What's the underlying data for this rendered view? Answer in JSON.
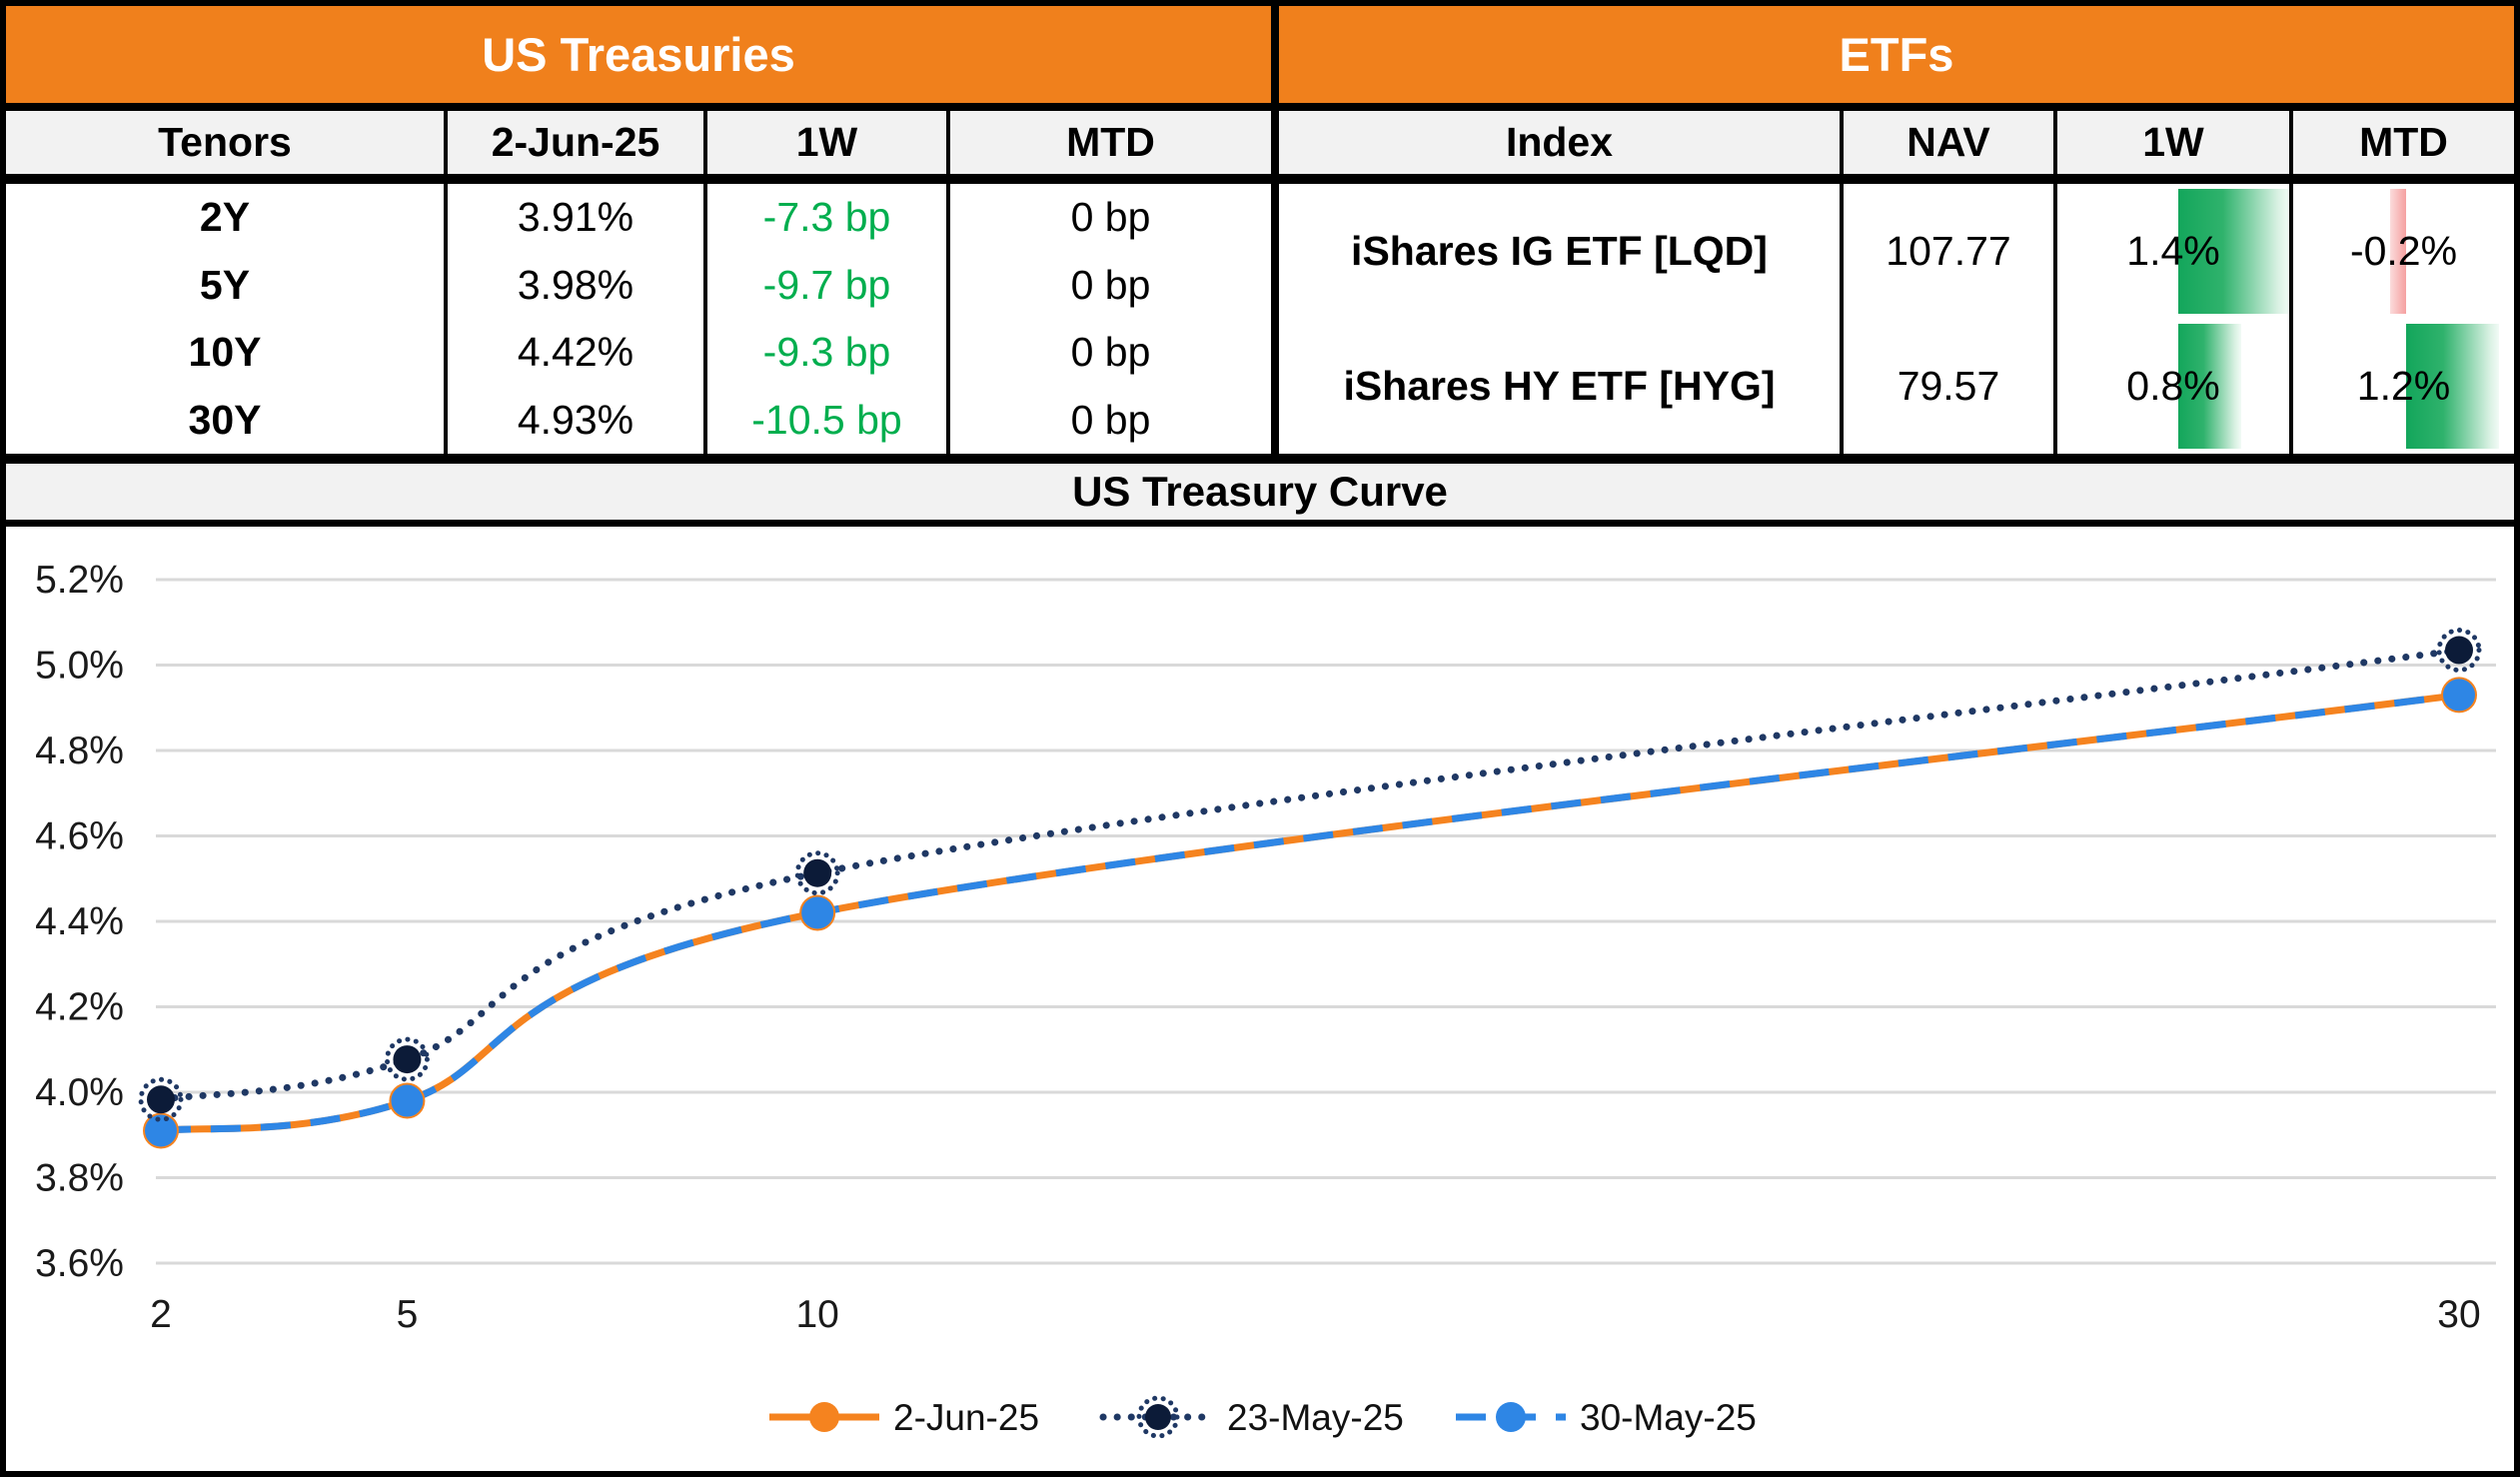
{
  "treasuries": {
    "title": "US Treasuries",
    "columns": [
      "Tenors",
      "2-Jun-25",
      "1W",
      "MTD"
    ],
    "rows": [
      {
        "tenor": "2Y",
        "yield": "3.91%",
        "w1": "-7.3 bp",
        "mtd": "0 bp"
      },
      {
        "tenor": "5Y",
        "yield": "3.98%",
        "w1": "-9.7 bp",
        "mtd": "0 bp"
      },
      {
        "tenor": "10Y",
        "yield": "4.42%",
        "w1": "-9.3 bp",
        "mtd": "0 bp"
      },
      {
        "tenor": "30Y",
        "yield": "4.93%",
        "w1": "-10.5 bp",
        "mtd": "0 bp"
      }
    ],
    "change_text_color": "#00AE4E"
  },
  "etfs": {
    "title": "ETFs",
    "columns": [
      "Index",
      "NAV",
      "1W",
      "MTD"
    ],
    "rows": [
      {
        "index": "iShares IG ETF [LQD]",
        "nav": "107.77",
        "w1_label": "1.4%",
        "w1": 1.4,
        "mtd_label": "-0.2%",
        "mtd": -0.2
      },
      {
        "index": "iShares HY ETF [HYG]",
        "nav": "79.57",
        "w1_label": "0.8%",
        "w1": 0.8,
        "mtd_label": "1.2%",
        "mtd": 1.2
      }
    ],
    "bar_colors": {
      "positive": "#13A65B",
      "negative": "#F5A0A0"
    }
  },
  "chart_data": {
    "type": "line",
    "title": "US Treasury Curve",
    "x": [
      2,
      5,
      10,
      30
    ],
    "x_ticks": [
      "2",
      "5",
      "10",
      "30"
    ],
    "y_ticks": [
      "5.2%",
      "5.0%",
      "4.8%",
      "4.6%",
      "4.4%",
      "4.2%",
      "4.0%",
      "3.8%",
      "3.6%"
    ],
    "ylim": [
      3.6,
      5.2
    ],
    "xlabel": "",
    "ylabel": "",
    "grid": true,
    "grid_color": "#D9D9D9",
    "legend_position": "bottom",
    "series": [
      {
        "name": "2-Jun-25",
        "values": [
          3.91,
          3.98,
          4.42,
          4.93
        ],
        "color": "#F5831F",
        "line": "solid",
        "marker": "circle"
      },
      {
        "name": "23-May-25",
        "values": [
          3.983,
          4.077,
          4.513,
          5.035
        ],
        "color": "#1F3864",
        "line": "dotted",
        "marker": "ringed-circle",
        "marker_fill": "#0C1B38"
      },
      {
        "name": "30-May-25",
        "values": [
          3.91,
          3.98,
          4.42,
          4.93
        ],
        "color": "#2E86E5",
        "line": "dashed",
        "marker": "circle"
      }
    ]
  },
  "colors": {
    "header_orange": "#F0801C",
    "band_gray": "#F2F2F2"
  }
}
